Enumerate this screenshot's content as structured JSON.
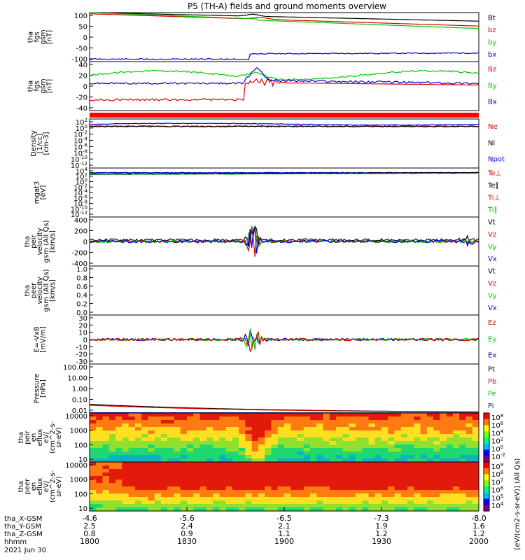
{
  "title": "P5 (TH-A) fields and ground moments overview",
  "chart_data": {
    "type": "line",
    "x": {
      "ticks": [
        "1800",
        "1830",
        "1900",
        "1930",
        "2000"
      ]
    },
    "orbit_rows": [
      {
        "label": "tha_X-GSM",
        "values": [
          "-4.6",
          "-5.6",
          "-6.5",
          "-7.3",
          "-8.0"
        ]
      },
      {
        "label": "tha_Y-GSM",
        "values": [
          "2.5",
          "2.4",
          "2.1",
          "1.9",
          "1.6"
        ]
      },
      {
        "label": "tha_Z-GSM",
        "values": [
          "0.8",
          "0.9",
          "1.1",
          "1.2",
          "1.2"
        ]
      },
      {
        "label": "hhmm",
        "values": []
      }
    ],
    "date": "2021 Jun 30",
    "panels": [
      {
        "id": "fgs-bt",
        "ylabel": [
          "tha",
          "fgs",
          "gsm",
          "[nT]"
        ],
        "ylim": [
          -100,
          100
        ],
        "yticks": [
          "100",
          "50",
          "0",
          "-50",
          "-100"
        ],
        "legend": [
          {
            "name": "Bt",
            "color": "#000000"
          },
          {
            "name": "bz",
            "color": "#dd0000"
          },
          {
            "name": "by",
            "color": "#00c800"
          },
          {
            "name": "bx",
            "color": "#0000dd"
          }
        ]
      },
      {
        "id": "fgs-b",
        "ylabel": [
          "tha",
          "fgs",
          "gsm",
          "[nT]"
        ],
        "ylim": [
          -50,
          40
        ],
        "yticks": [
          "40",
          "20",
          "0",
          "-20",
          "-40"
        ],
        "legend": [
          {
            "name": "Bz",
            "color": "#dd0000"
          },
          {
            "name": "By",
            "color": "#00c800"
          },
          {
            "name": "Bx",
            "color": "#0000dd"
          }
        ]
      },
      {
        "id": "density",
        "ylabel": [
          "Density",
          "[1/cc]",
          "[cm-3]"
        ],
        "ylim": [
          -14,
          3
        ],
        "yticks": [
          "10^2",
          "10^0",
          "10^-2",
          "10^-4",
          "10^-6",
          "10^-8",
          "10^-10",
          "10^-12"
        ],
        "legend": [
          {
            "name": "Ne",
            "color": "#dd0000"
          },
          {
            "name": "Ni",
            "color": "#000000"
          },
          {
            "name": "Npot",
            "color": "#0000dd"
          }
        ]
      },
      {
        "id": "temperature",
        "ylabel": [
          "mgat3",
          "[eV]"
        ],
        "ylim": [
          -14,
          5
        ],
        "yticks": [
          "10^4",
          "10^2",
          "10^0",
          "10^-2",
          "10^-4",
          "10^-6",
          "10^-8",
          "10^-10",
          "10^-12"
        ],
        "legend": [
          {
            "name": "Te⊥",
            "color": "#dd0000"
          },
          {
            "name": "Te∥",
            "color": "#000000"
          },
          {
            "name": "Ti⊥",
            "color": "#dd0000"
          },
          {
            "name": "Ti∥",
            "color": "#00c800"
          }
        ]
      },
      {
        "id": "peir-velocity",
        "ylabel": [
          "tha",
          "peir",
          "velocity",
          "gsm (All Qs)",
          "[km/s]"
        ],
        "ylim": [
          -400,
          400
        ],
        "yticks": [
          "400",
          "200",
          "0",
          "-200",
          "-400"
        ],
        "legend": [
          {
            "name": "Vt",
            "color": "#000000"
          },
          {
            "name": "Vz",
            "color": "#dd0000"
          },
          {
            "name": "Vy",
            "color": "#00c800"
          },
          {
            "name": "Vx",
            "color": "#0000dd"
          }
        ]
      },
      {
        "id": "peer-velocity",
        "ylabel": [
          "tha",
          "peer",
          "velocity",
          "gsm (All Qs)",
          "[km/s]"
        ],
        "ylim": [
          0,
          1
        ],
        "yticks": [
          "1.0",
          "0.8",
          "0.6",
          "0.4",
          "0.2",
          "0.0"
        ],
        "legend": [
          {
            "name": "Vt",
            "color": "#000000"
          },
          {
            "name": "Vz",
            "color": "#dd0000"
          },
          {
            "name": "Vy",
            "color": "#00c800"
          },
          {
            "name": "Vx",
            "color": "#0000dd"
          }
        ]
      },
      {
        "id": "efield",
        "ylabel": [
          "E=-VxB",
          "[mV/m]"
        ],
        "ylim": [
          -30,
          30
        ],
        "yticks": [
          "30",
          "20",
          "10",
          "0",
          "-10",
          "-20",
          "-30"
        ],
        "legend": [
          {
            "name": "Ez",
            "color": "#dd0000"
          },
          {
            "name": "Ey",
            "color": "#00c800"
          },
          {
            "name": "Ex",
            "color": "#0000dd"
          }
        ]
      },
      {
        "id": "pressure",
        "ylabel": [
          "Pressure",
          "[nPa]"
        ],
        "ylim": [
          0.01,
          100
        ],
        "yticks": [
          "100.00",
          "10.00",
          "1.00",
          "0.10",
          "0.01"
        ],
        "legend": [
          {
            "name": "Pt",
            "color": "#000000"
          },
          {
            "name": "Pb",
            "color": "#dd0000"
          },
          {
            "name": "Pe",
            "color": "#00c800"
          },
          {
            "name": "Pi",
            "color": "#0000dd"
          }
        ]
      },
      {
        "id": "peir-eflux",
        "ylabel": [
          "tha",
          "peir",
          "en",
          "eflux",
          "eV/",
          "(cm^2-s-",
          "sr-eV)"
        ],
        "ylim": [
          5,
          30000
        ],
        "yticks": [
          "10000",
          "1000",
          "100",
          "10"
        ],
        "colorbar_ticks": [
          "10^8",
          "10^6",
          "10^4",
          "10^2",
          "10^0",
          "10^-2"
        ]
      },
      {
        "id": "peer-eflux",
        "ylabel": [
          "tha",
          "peer",
          "en",
          "eflux",
          "eV/",
          "(cm^2-s-",
          "sr-eV)"
        ],
        "ylim": [
          5,
          30000
        ],
        "yticks": [
          "10000",
          "1000",
          "100",
          "10"
        ],
        "colorbar_ticks": [
          "10^9",
          "10^8",
          "10^7",
          "10^6",
          "10^5",
          "10^4"
        ],
        "colorbar_label": "[eV/(cm2-s-sr-eV)] (All Qs)"
      }
    ]
  }
}
